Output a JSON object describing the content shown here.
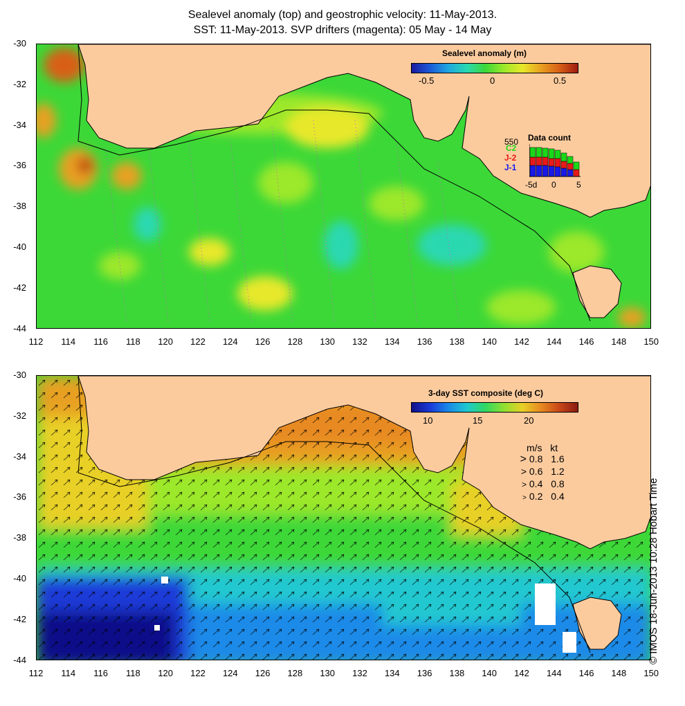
{
  "titles": {
    "line1": "Sealevel anomaly (top) and geostrophic velocity: 11-May-2013.",
    "line2": "SST: 11-May-2013. SVP drifters (magenta): 05 May - 14 May"
  },
  "axes": {
    "lat_labels": [
      "-30",
      "-32",
      "-34",
      "-36",
      "-38",
      "-40",
      "-42",
      "-44"
    ],
    "lon_labels": [
      "112",
      "114",
      "116",
      "118",
      "120",
      "122",
      "124",
      "126",
      "128",
      "130",
      "132",
      "134",
      "136",
      "138",
      "140",
      "142",
      "144",
      "146",
      "148",
      "150"
    ]
  },
  "top_panel": {
    "colorbar_title": "Sealevel anomaly (m)",
    "colorbar_ticks": [
      "-0.5",
      "0",
      "0.5"
    ],
    "data_count": {
      "title": "Data count",
      "max_label": "550",
      "series": [
        "C2",
        "J-2",
        "J-1"
      ],
      "series_colors": [
        "#19d819",
        "#e81919",
        "#1919e8"
      ],
      "x_ticks": [
        "-5d",
        "0",
        "5"
      ]
    }
  },
  "bottom_panel": {
    "colorbar_title": "3-day SST composite (deg C)",
    "colorbar_ticks": [
      "10",
      "15",
      "20"
    ],
    "velocity_scale": {
      "header_ms": "m/s",
      "header_kt": "kt",
      "rows": [
        {
          "ms": "0.8",
          "kt": "1.6"
        },
        {
          "ms": "0.6",
          "kt": "1.2"
        },
        {
          "ms": "0.4",
          "kt": "0.8"
        },
        {
          "ms": "0.2",
          "kt": "0.4"
        }
      ]
    }
  },
  "copyright": "© IMOS 18-Jun-2013 10:28 Hobart Time",
  "colors": {
    "land": "#fbcb9e",
    "sla_colormap": [
      "#1a1aa0",
      "#1a5ad8",
      "#1fa8e0",
      "#29d8b0",
      "#3cd838",
      "#9ce82a",
      "#e8e82a",
      "#e8a020",
      "#d86018",
      "#a01a10"
    ],
    "sst_colormap": [
      "#10108a",
      "#1a3ad8",
      "#1a8ae8",
      "#20c8d0",
      "#30d860",
      "#90e030",
      "#e8d028",
      "#e88a20",
      "#c84818",
      "#8a1a10"
    ]
  }
}
